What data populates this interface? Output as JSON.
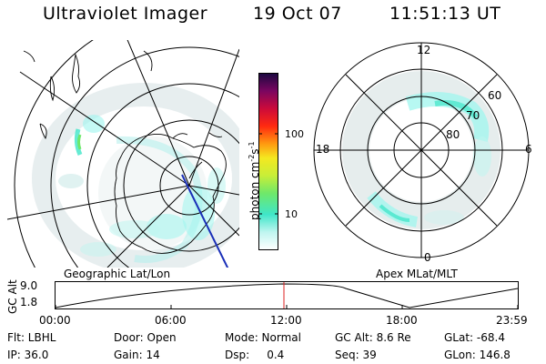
{
  "header": {
    "instrument": "Ultraviolet Imager",
    "date": "19 Oct 07",
    "time": "11:51:13 UT"
  },
  "colorbar": {
    "tick_labels": [
      "100",
      "10"
    ],
    "unit_text": "photon cm",
    "unit_sup1": "-2",
    "unit_s": "s",
    "unit_sup2": "-1",
    "palette": [
      "#ffffff",
      "#9ff5ee",
      "#3fe6c8",
      "#6fe86a",
      "#c8ee38",
      "#f4e820",
      "#ff9a10",
      "#ff2a10",
      "#cc0a3a",
      "#7a0660",
      "#1a0840"
    ]
  },
  "left_map": {
    "caption": "Geographic Lat/Lon"
  },
  "right_map": {
    "caption": "Apex MLat/MLT",
    "mlt_labels": {
      "top": "12",
      "left": "18",
      "right": "6",
      "bottom": "0"
    },
    "lat_labels": [
      "60",
      "70",
      "80"
    ]
  },
  "altitude_panel": {
    "axis_title": "GC Alt",
    "y_ticks": [
      "9.0",
      "1.8"
    ],
    "x_ticks": [
      "00:00",
      "06:00",
      "12:00",
      "18:00",
      "23:59"
    ],
    "marker_color": "#dd2222"
  },
  "status": {
    "row1": [
      "Flt: LBHL",
      "Door: Open",
      "Mode: Normal",
      "GC Alt: 8.6 Re",
      "GLat: -68.4"
    ],
    "row2": [
      "IP: 36.0",
      "Gain: 14",
      "Dsp:     0.4",
      "Seq: 39",
      "GLon: 146.8"
    ]
  }
}
